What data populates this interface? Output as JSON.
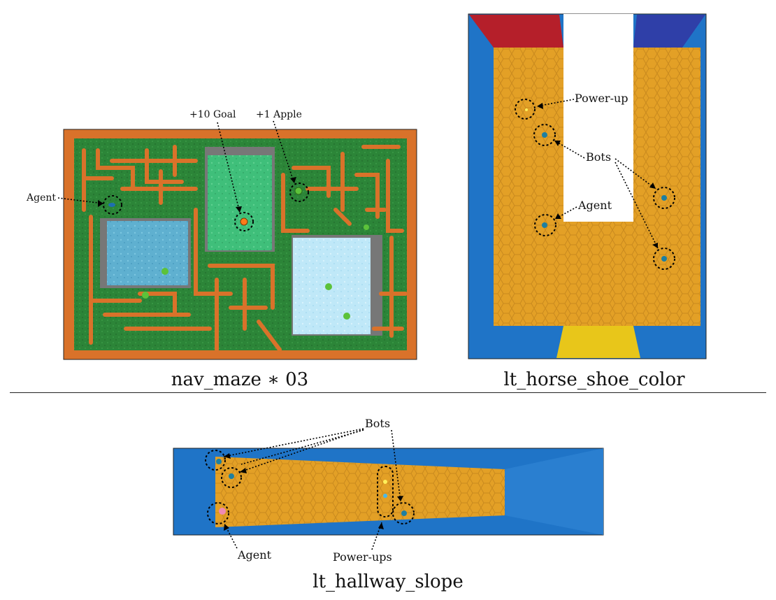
{
  "panels": {
    "nav_maze": {
      "caption": "nav_maze ∗ 03",
      "labels": {
        "goal": "+10 Goal",
        "apple": "+1 Apple",
        "agent": "Agent"
      }
    },
    "horse_shoe": {
      "caption": "lt_horse_shoe_color",
      "labels": {
        "powerup": "Power-up",
        "bots": "Bots",
        "agent": "Agent"
      }
    },
    "hallway": {
      "caption": "lt_hallway_slope",
      "labels": {
        "bots": "Bots",
        "agent": "Agent",
        "powerups": "Power-ups"
      }
    }
  },
  "colors": {
    "maze_floor": "#2f8a3a",
    "maze_wall": "#d9722a",
    "maze_room_blue": "#5fb0d0",
    "maze_room_green": "#3fbf7a",
    "maze_room_light": "#bfe8f8",
    "arena_floor": "#e3a026",
    "arena_wall": "#1f74c7",
    "corner_red": "#b51f2a",
    "corner_blue": "#2f3fa8",
    "highlight_yellow": "#e8c61a"
  }
}
